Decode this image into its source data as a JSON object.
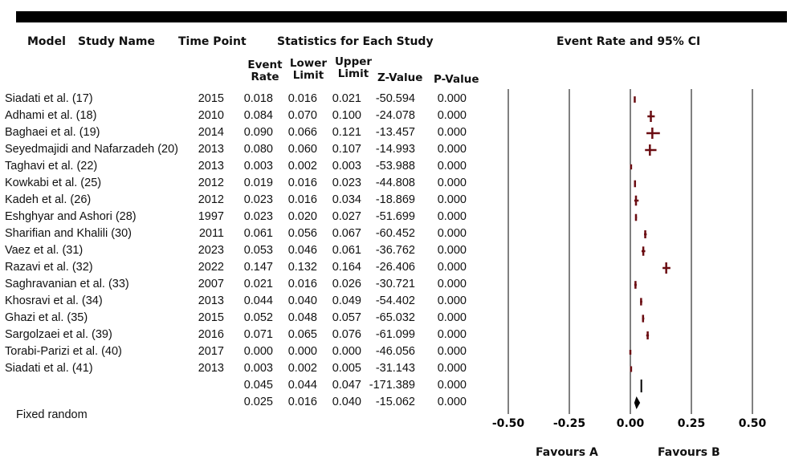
{
  "headers": {
    "model": "Model",
    "study_name": "Study Name",
    "time_point": "Time Point",
    "statistics": "Statistics for Each Study",
    "ci_title": "Event Rate and 95% CI",
    "event_rate": [
      "Event",
      "Rate"
    ],
    "lower_limit": [
      "Lower",
      "Limit"
    ],
    "upper_limit": [
      "Upper",
      "Limit"
    ],
    "z_value": "Z-Value",
    "p_value": "P-Value"
  },
  "model_label": "Fixed random",
  "favours": {
    "a": "Favours A",
    "b": "Favours B"
  },
  "rows": [
    {
      "study": "Siadati et al. (17)",
      "year": "2015",
      "rate": "0.018",
      "lower": "0.016",
      "upper": "0.021",
      "z": "-50.594",
      "p": "0.000"
    },
    {
      "study": "Adhami et al. (18)",
      "year": "2010",
      "rate": "0.084",
      "lower": "0.070",
      "upper": "0.100",
      "z": "-24.078",
      "p": "0.000"
    },
    {
      "study": "Baghaei et al. (19)",
      "year": "2014",
      "rate": "0.090",
      "lower": "0.066",
      "upper": "0.121",
      "z": "-13.457",
      "p": "0.000"
    },
    {
      "study": "Seyedmajidi and Nafarzadeh (20)",
      "year": "2013",
      "rate": "0.080",
      "lower": "0.060",
      "upper": "0.107",
      "z": "-14.993",
      "p": "0.000"
    },
    {
      "study": "Taghavi et al. (22)",
      "year": "2013",
      "rate": "0.003",
      "lower": "0.002",
      "upper": "0.003",
      "z": "-53.988",
      "p": "0.000"
    },
    {
      "study": "Kowkabi et al. (25)",
      "year": "2012",
      "rate": "0.019",
      "lower": "0.016",
      "upper": "0.023",
      "z": "-44.808",
      "p": "0.000"
    },
    {
      "study": "Kadeh et al. (26)",
      "year": "2012",
      "rate": "0.023",
      "lower": "0.016",
      "upper": "0.034",
      "z": "-18.869",
      "p": "0.000"
    },
    {
      "study": "Eshghyar and Ashori (28)",
      "year": "1997",
      "rate": "0.023",
      "lower": "0.020",
      "upper": "0.027",
      "z": "-51.699",
      "p": "0.000"
    },
    {
      "study": "Sharifian and Khalili (30)",
      "year": "2011",
      "rate": "0.061",
      "lower": "0.056",
      "upper": "0.067",
      "z": "-60.452",
      "p": "0.000"
    },
    {
      "study": "Vaez et al. (31)",
      "year": "2023",
      "rate": "0.053",
      "lower": "0.046",
      "upper": "0.061",
      "z": "-36.762",
      "p": "0.000"
    },
    {
      "study": "Razavi et al. (32)",
      "year": "2022",
      "rate": "0.147",
      "lower": "0.132",
      "upper": "0.164",
      "z": "-26.406",
      "p": "0.000"
    },
    {
      "study": "Saghravanian et al. (33)",
      "year": "2007",
      "rate": "0.021",
      "lower": "0.016",
      "upper": "0.026",
      "z": "-30.721",
      "p": "0.000"
    },
    {
      "study": "Khosravi et al. (34)",
      "year": "2013",
      "rate": "0.044",
      "lower": "0.040",
      "upper": "0.049",
      "z": "-54.402",
      "p": "0.000"
    },
    {
      "study": "Ghazi et al. (35)",
      "year": "2015",
      "rate": "0.052",
      "lower": "0.048",
      "upper": "0.057",
      "z": "-65.032",
      "p": "0.000"
    },
    {
      "study": "Sargolzaei et al. (39)",
      "year": "2016",
      "rate": "0.071",
      "lower": "0.065",
      "upper": "0.076",
      "z": "-61.099",
      "p": "0.000"
    },
    {
      "study": "Torabi-Parizi et al. (40)",
      "year": "2017",
      "rate": "0.000",
      "lower": "0.000",
      "upper": "0.000",
      "z": "-46.056",
      "p": "0.000"
    },
    {
      "study": "Siadati et al. (41)",
      "year": "2013",
      "rate": "0.003",
      "lower": "0.002",
      "upper": "0.005",
      "z": "-31.143",
      "p": "0.000"
    }
  ],
  "summaries": [
    {
      "label": "",
      "rate": "0.045",
      "lower": "0.044",
      "upper": "0.047",
      "z": "-171.389",
      "p": "0.000"
    },
    {
      "label": "",
      "rate": "0.025",
      "lower": "0.016",
      "upper": "0.040",
      "z": "-15.062",
      "p": "0.000"
    }
  ],
  "chart_data": {
    "type": "scatter",
    "title": "Event Rate and 95% CI",
    "x_ticks": [
      "-0.50",
      "-0.25",
      "0.00",
      "0.25",
      "0.50"
    ],
    "xlim": [
      -0.5,
      0.5
    ],
    "grid": true,
    "marker_color": "#6b0d12",
    "series": [
      {
        "x": [
          0.018,
          0.084,
          0.09,
          0.08,
          0.003,
          0.019,
          0.023,
          0.023,
          0.061,
          0.053,
          0.147,
          0.021,
          0.044,
          0.052,
          0.071,
          0.0,
          0.003
        ],
        "lower": [
          0.016,
          0.07,
          0.066,
          0.06,
          0.002,
          0.016,
          0.016,
          0.02,
          0.056,
          0.046,
          0.132,
          0.016,
          0.04,
          0.048,
          0.065,
          0.0,
          0.002
        ],
        "upper": [
          0.021,
          0.1,
          0.121,
          0.107,
          0.003,
          0.023,
          0.034,
          0.027,
          0.067,
          0.061,
          0.164,
          0.026,
          0.049,
          0.057,
          0.076,
          0.0,
          0.005
        ]
      }
    ],
    "summary": [
      {
        "rate": 0.045,
        "lower": 0.044,
        "upper": 0.047,
        "shape": "line"
      },
      {
        "rate": 0.025,
        "lower": 0.016,
        "upper": 0.04,
        "shape": "diamond"
      }
    ]
  }
}
